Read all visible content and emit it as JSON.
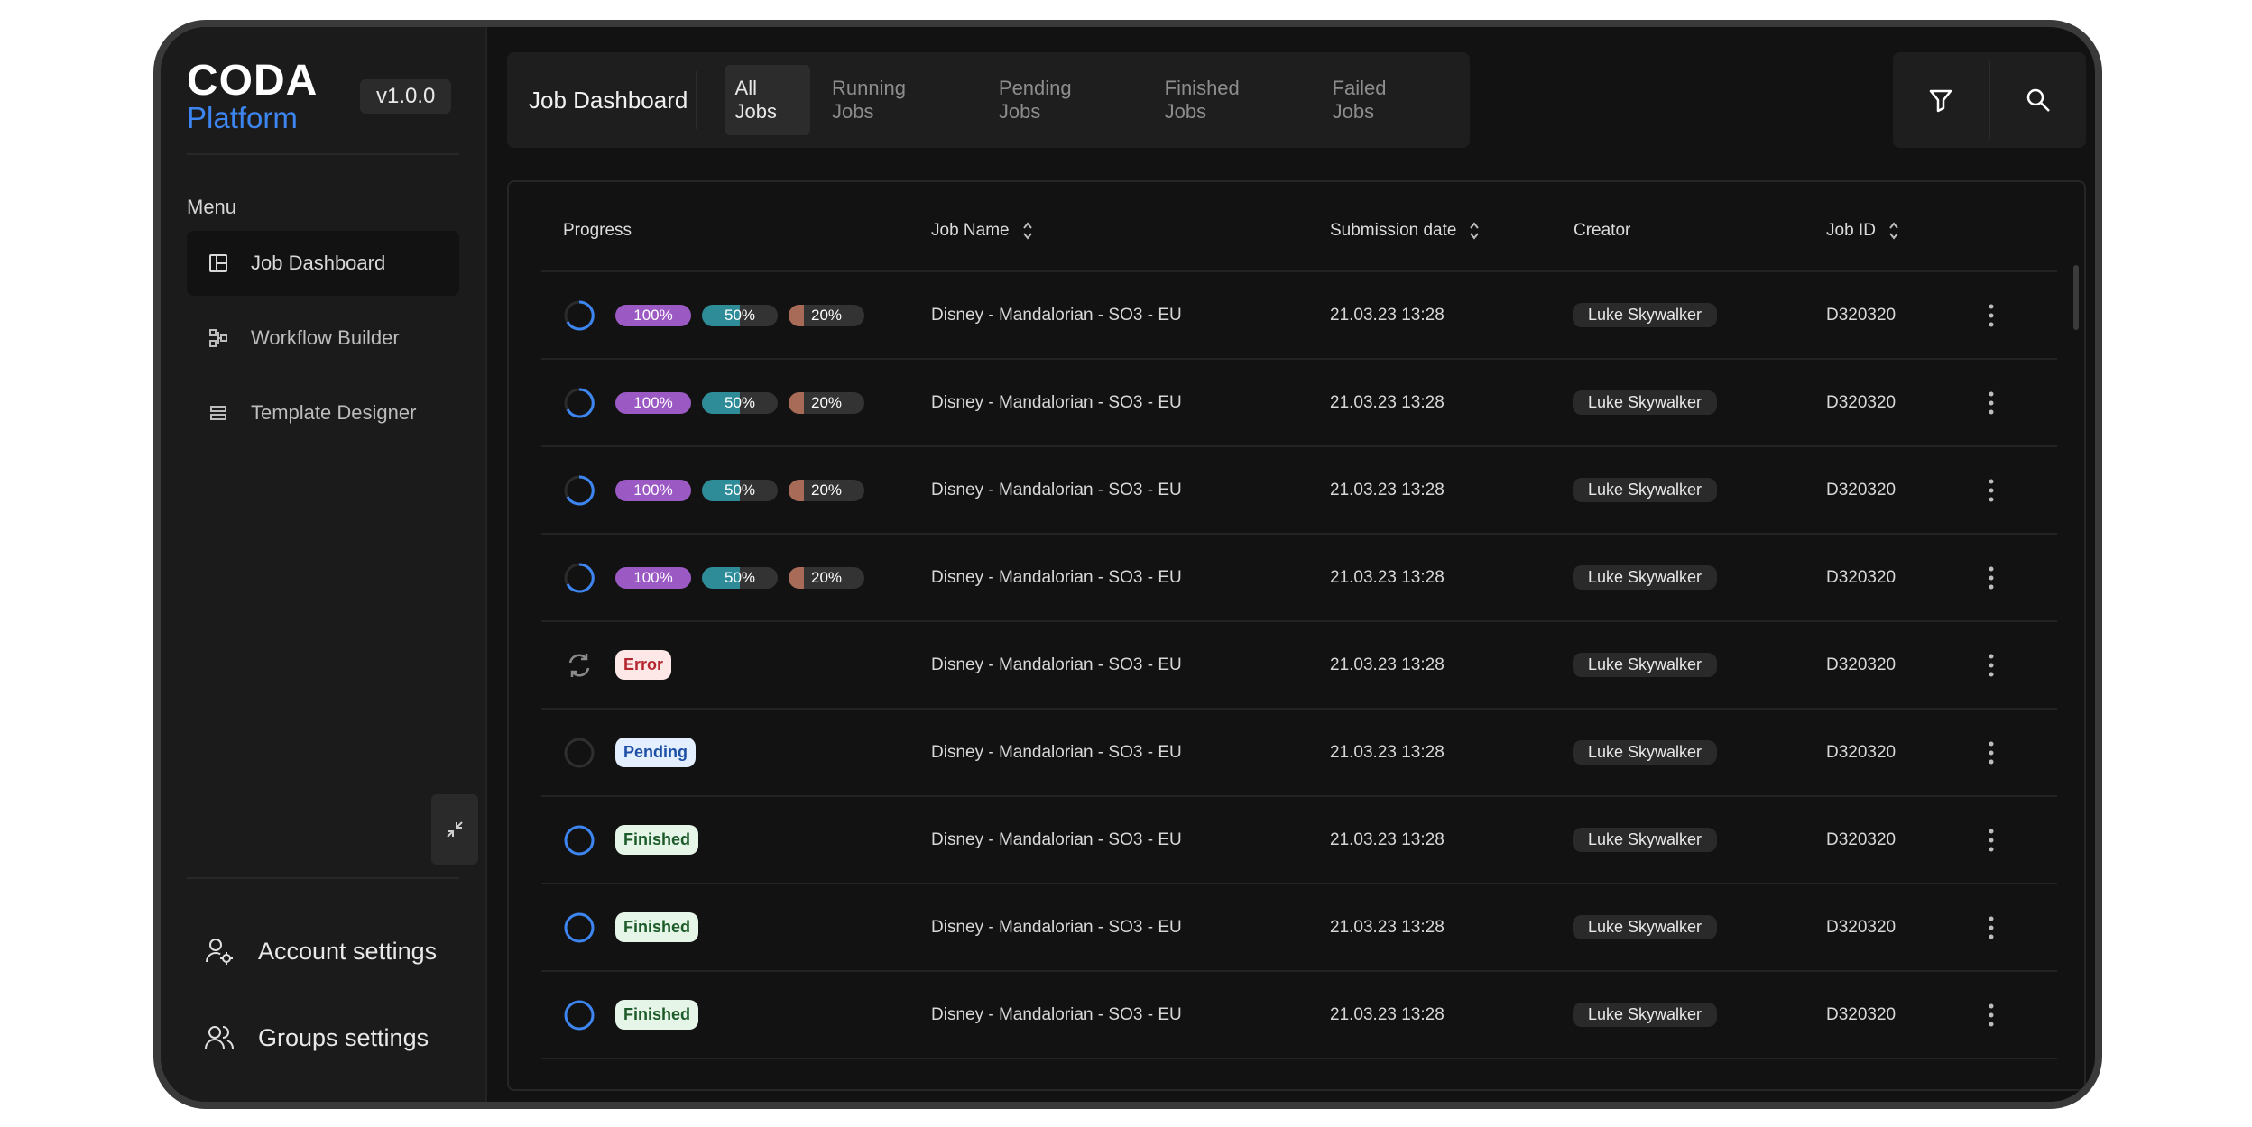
{
  "brand": {
    "line1": "CODA",
    "line2": "Platform",
    "version": "v1.0.0"
  },
  "sidebar": {
    "menu_label": "Menu",
    "items": [
      {
        "label": "Job Dashboard",
        "icon": "layout-icon",
        "active": true
      },
      {
        "label": "Workflow Builder",
        "icon": "workflow-icon",
        "active": false
      },
      {
        "label": "Template Designer",
        "icon": "template-icon",
        "active": false
      }
    ],
    "settings": [
      {
        "label": "Account settings",
        "icon": "user-gear-icon"
      },
      {
        "label": "Groups settings",
        "icon": "users-icon"
      }
    ]
  },
  "header": {
    "title": "Job Dashboard",
    "tabs": [
      "All Jobs",
      "Running Jobs",
      "Pending Jobs",
      "Finished Jobs",
      "Failed Jobs"
    ],
    "active_tab": "All Jobs"
  },
  "table": {
    "columns": [
      "Progress",
      "Job Name",
      "Submission date",
      "Creator",
      "Job ID"
    ],
    "rows": [
      {
        "status": "running",
        "p1": "100%",
        "p2": "50%",
        "p3": "20%",
        "v1": 1.0,
        "v2": 0.5,
        "v3": 0.2,
        "name": "Disney - Mandalorian - SO3 - EU",
        "date": "21.03.23 13:28",
        "creator": "Luke Skywalker",
        "id": "D320320"
      },
      {
        "status": "running",
        "p1": "100%",
        "p2": "50%",
        "p3": "20%",
        "v1": 1.0,
        "v2": 0.5,
        "v3": 0.2,
        "name": "Disney - Mandalorian - SO3 - EU",
        "date": "21.03.23 13:28",
        "creator": "Luke Skywalker",
        "id": "D320320"
      },
      {
        "status": "running",
        "p1": "100%",
        "p2": "50%",
        "p3": "20%",
        "v1": 1.0,
        "v2": 0.5,
        "v3": 0.2,
        "name": "Disney - Mandalorian - SO3 - EU",
        "date": "21.03.23 13:28",
        "creator": "Luke Skywalker",
        "id": "D320320"
      },
      {
        "status": "running",
        "p1": "100%",
        "p2": "50%",
        "p3": "20%",
        "v1": 1.0,
        "v2": 0.5,
        "v3": 0.2,
        "name": "Disney - Mandalorian - SO3 - EU",
        "date": "21.03.23 13:28",
        "creator": "Luke Skywalker",
        "id": "D320320"
      },
      {
        "status": "error",
        "badge": "Error",
        "name": "Disney - Mandalorian - SO3 - EU",
        "date": "21.03.23 13:28",
        "creator": "Luke Skywalker",
        "id": "D320320"
      },
      {
        "status": "pending",
        "badge": "Pending",
        "name": "Disney - Mandalorian - SO3 - EU",
        "date": "21.03.23 13:28",
        "creator": "Luke Skywalker",
        "id": "D320320"
      },
      {
        "status": "finished",
        "badge": "Finished",
        "name": "Disney - Mandalorian - SO3 - EU",
        "date": "21.03.23 13:28",
        "creator": "Luke Skywalker",
        "id": "D320320"
      },
      {
        "status": "finished",
        "badge": "Finished",
        "name": "Disney - Mandalorian - SO3 - EU",
        "date": "21.03.23 13:28",
        "creator": "Luke Skywalker",
        "id": "D320320"
      },
      {
        "status": "finished",
        "badge": "Finished",
        "name": "Disney - Mandalorian - SO3 - EU",
        "date": "21.03.23 13:28",
        "creator": "Luke Skywalker",
        "id": "D320320"
      }
    ]
  },
  "colors": {
    "accent": "#3d86f2",
    "pill1": "#9b59c4",
    "pill2": "#2d8c98",
    "pill3": "#a86b58",
    "error_bg": "#fde7e7",
    "error_fg": "#b3262e",
    "pending_bg": "#e3eefe",
    "pending_fg": "#1d4fa6",
    "finished_bg": "#e5f6e8",
    "finished_fg": "#1e5b2a"
  }
}
